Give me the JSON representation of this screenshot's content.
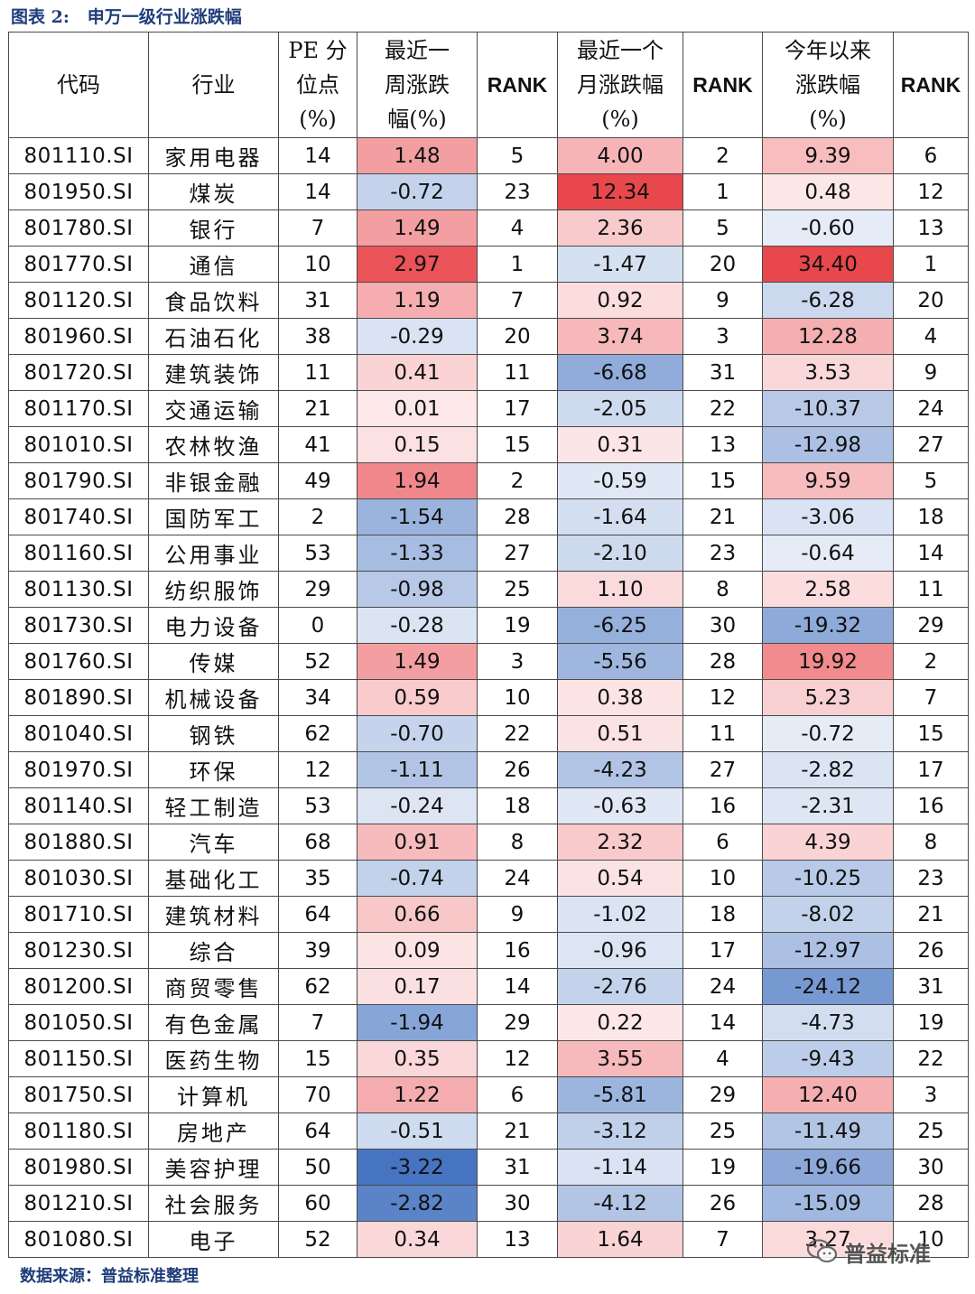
{
  "caption": {
    "label": "图表 2:",
    "title": "申万一级行业涨跌幅"
  },
  "source": "数据来源：普益标准整理",
  "watermark": {
    "text": "普益标准"
  },
  "columns": [
    {
      "lines": [
        "代码"
      ]
    },
    {
      "lines": [
        "行业"
      ]
    },
    {
      "lines": [
        "PE 分",
        "位点",
        "(%)"
      ]
    },
    {
      "lines": [
        "最近一",
        "周涨跌",
        "幅(%)"
      ]
    },
    {
      "lines": [
        "RANK"
      ],
      "rank": true
    },
    {
      "lines": [
        "最近一个",
        "月涨跌幅",
        "(%)"
      ]
    },
    {
      "lines": [
        "RANK"
      ],
      "rank": true
    },
    {
      "lines": [
        "今年以来",
        "涨跌幅",
        "(%)"
      ]
    },
    {
      "lines": [
        "RANK"
      ],
      "rank": true
    }
  ],
  "colors": {
    "pos": "#e8474c",
    "neg": "#4674c1",
    "scale": {
      "week": 3.22,
      "month": 12.34,
      "ytd": 34.4
    }
  },
  "rows": [
    {
      "code": "801110.SI",
      "industry": "家用电器",
      "pe": "14",
      "week": "1.48",
      "week_rank": "5",
      "month": "4.00",
      "month_rank": "2",
      "ytd": "9.39",
      "ytd_rank": "6"
    },
    {
      "code": "801950.SI",
      "industry": "煤炭",
      "pe": "14",
      "week": "-0.72",
      "week_rank": "23",
      "month": "12.34",
      "month_rank": "1",
      "ytd": "0.48",
      "ytd_rank": "12"
    },
    {
      "code": "801780.SI",
      "industry": "银行",
      "pe": "7",
      "week": "1.49",
      "week_rank": "4",
      "month": "2.36",
      "month_rank": "5",
      "ytd": "-0.60",
      "ytd_rank": "13"
    },
    {
      "code": "801770.SI",
      "industry": "通信",
      "pe": "10",
      "week": "2.97",
      "week_rank": "1",
      "month": "-1.47",
      "month_rank": "20",
      "ytd": "34.40",
      "ytd_rank": "1"
    },
    {
      "code": "801120.SI",
      "industry": "食品饮料",
      "pe": "31",
      "week": "1.19",
      "week_rank": "7",
      "month": "0.92",
      "month_rank": "9",
      "ytd": "-6.28",
      "ytd_rank": "20"
    },
    {
      "code": "801960.SI",
      "industry": "石油石化",
      "pe": "38",
      "week": "-0.29",
      "week_rank": "20",
      "month": "3.74",
      "month_rank": "3",
      "ytd": "12.28",
      "ytd_rank": "4"
    },
    {
      "code": "801720.SI",
      "industry": "建筑装饰",
      "pe": "11",
      "week": "0.41",
      "week_rank": "11",
      "month": "-6.68",
      "month_rank": "31",
      "ytd": "3.53",
      "ytd_rank": "9"
    },
    {
      "code": "801170.SI",
      "industry": "交通运输",
      "pe": "21",
      "week": "0.01",
      "week_rank": "17",
      "month": "-2.05",
      "month_rank": "22",
      "ytd": "-10.37",
      "ytd_rank": "24"
    },
    {
      "code": "801010.SI",
      "industry": "农林牧渔",
      "pe": "41",
      "week": "0.15",
      "week_rank": "15",
      "month": "0.31",
      "month_rank": "13",
      "ytd": "-12.98",
      "ytd_rank": "27"
    },
    {
      "code": "801790.SI",
      "industry": "非银金融",
      "pe": "49",
      "week": "1.94",
      "week_rank": "2",
      "month": "-0.59",
      "month_rank": "15",
      "ytd": "9.59",
      "ytd_rank": "5"
    },
    {
      "code": "801740.SI",
      "industry": "国防军工",
      "pe": "2",
      "week": "-1.54",
      "week_rank": "28",
      "month": "-1.64",
      "month_rank": "21",
      "ytd": "-3.06",
      "ytd_rank": "18"
    },
    {
      "code": "801160.SI",
      "industry": "公用事业",
      "pe": "53",
      "week": "-1.33",
      "week_rank": "27",
      "month": "-2.10",
      "month_rank": "23",
      "ytd": "-0.64",
      "ytd_rank": "14"
    },
    {
      "code": "801130.SI",
      "industry": "纺织服饰",
      "pe": "29",
      "week": "-0.98",
      "week_rank": "25",
      "month": "1.10",
      "month_rank": "8",
      "ytd": "2.58",
      "ytd_rank": "11"
    },
    {
      "code": "801730.SI",
      "industry": "电力设备",
      "pe": "0",
      "week": "-0.28",
      "week_rank": "19",
      "month": "-6.25",
      "month_rank": "30",
      "ytd": "-19.32",
      "ytd_rank": "29"
    },
    {
      "code": "801760.SI",
      "industry": "传媒",
      "pe": "52",
      "week": "1.49",
      "week_rank": "3",
      "month": "-5.56",
      "month_rank": "28",
      "ytd": "19.92",
      "ytd_rank": "2"
    },
    {
      "code": "801890.SI",
      "industry": "机械设备",
      "pe": "34",
      "week": "0.59",
      "week_rank": "10",
      "month": "0.38",
      "month_rank": "12",
      "ytd": "5.23",
      "ytd_rank": "7"
    },
    {
      "code": "801040.SI",
      "industry": "钢铁",
      "pe": "62",
      "week": "-0.70",
      "week_rank": "22",
      "month": "0.51",
      "month_rank": "11",
      "ytd": "-0.72",
      "ytd_rank": "15"
    },
    {
      "code": "801970.SI",
      "industry": "环保",
      "pe": "12",
      "week": "-1.11",
      "week_rank": "26",
      "month": "-4.23",
      "month_rank": "27",
      "ytd": "-2.82",
      "ytd_rank": "17"
    },
    {
      "code": "801140.SI",
      "industry": "轻工制造",
      "pe": "53",
      "week": "-0.24",
      "week_rank": "18",
      "month": "-0.63",
      "month_rank": "16",
      "ytd": "-2.31",
      "ytd_rank": "16"
    },
    {
      "code": "801880.SI",
      "industry": "汽车",
      "pe": "68",
      "week": "0.91",
      "week_rank": "8",
      "month": "2.32",
      "month_rank": "6",
      "ytd": "4.39",
      "ytd_rank": "8"
    },
    {
      "code": "801030.SI",
      "industry": "基础化工",
      "pe": "35",
      "week": "-0.74",
      "week_rank": "24",
      "month": "0.54",
      "month_rank": "10",
      "ytd": "-10.25",
      "ytd_rank": "23"
    },
    {
      "code": "801710.SI",
      "industry": "建筑材料",
      "pe": "64",
      "week": "0.66",
      "week_rank": "9",
      "month": "-1.02",
      "month_rank": "18",
      "ytd": "-8.02",
      "ytd_rank": "21"
    },
    {
      "code": "801230.SI",
      "industry": "综合",
      "pe": "39",
      "week": "0.09",
      "week_rank": "16",
      "month": "-0.96",
      "month_rank": "17",
      "ytd": "-12.97",
      "ytd_rank": "26"
    },
    {
      "code": "801200.SI",
      "industry": "商贸零售",
      "pe": "62",
      "week": "0.17",
      "week_rank": "14",
      "month": "-2.76",
      "month_rank": "24",
      "ytd": "-24.12",
      "ytd_rank": "31"
    },
    {
      "code": "801050.SI",
      "industry": "有色金属",
      "pe": "7",
      "week": "-1.94",
      "week_rank": "29",
      "month": "0.22",
      "month_rank": "14",
      "ytd": "-4.73",
      "ytd_rank": "19"
    },
    {
      "code": "801150.SI",
      "industry": "医药生物",
      "pe": "15",
      "week": "0.35",
      "week_rank": "12",
      "month": "3.55",
      "month_rank": "4",
      "ytd": "-9.43",
      "ytd_rank": "22"
    },
    {
      "code": "801750.SI",
      "industry": "计算机",
      "pe": "70",
      "week": "1.22",
      "week_rank": "6",
      "month": "-5.81",
      "month_rank": "29",
      "ytd": "12.40",
      "ytd_rank": "3"
    },
    {
      "code": "801180.SI",
      "industry": "房地产",
      "pe": "64",
      "week": "-0.51",
      "week_rank": "21",
      "month": "-3.12",
      "month_rank": "25",
      "ytd": "-11.49",
      "ytd_rank": "25"
    },
    {
      "code": "801980.SI",
      "industry": "美容护理",
      "pe": "50",
      "week": "-3.22",
      "week_rank": "31",
      "month": "-1.14",
      "month_rank": "19",
      "ytd": "-19.66",
      "ytd_rank": "30"
    },
    {
      "code": "801210.SI",
      "industry": "社会服务",
      "pe": "60",
      "week": "-2.82",
      "week_rank": "30",
      "month": "-4.12",
      "month_rank": "26",
      "ytd": "-15.09",
      "ytd_rank": "28"
    },
    {
      "code": "801080.SI",
      "industry": "电子",
      "pe": "52",
      "week": "0.34",
      "week_rank": "13",
      "month": "1.64",
      "month_rank": "7",
      "ytd": "3.27",
      "ytd_rank": "10"
    }
  ]
}
